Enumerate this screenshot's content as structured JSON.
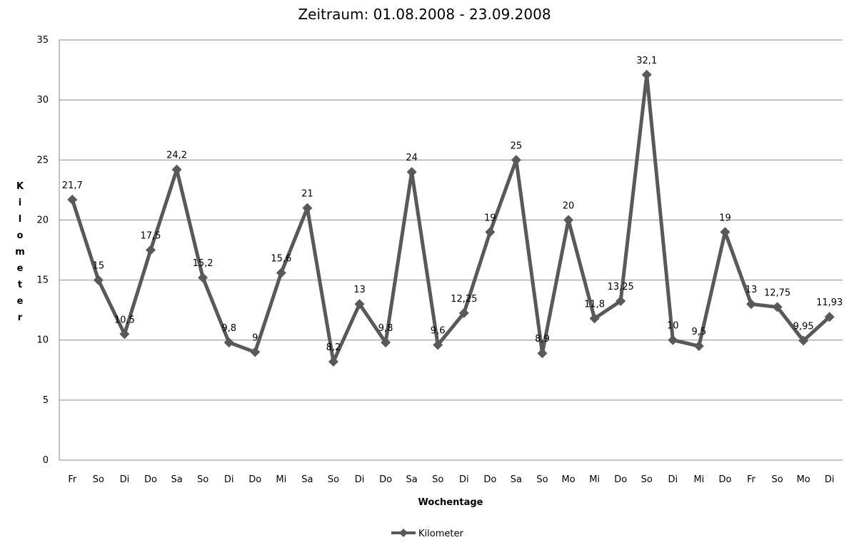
{
  "chart_data": {
    "type": "line",
    "title": "Zeitraum: 01.08.2008 - 23.09.2008",
    "xlabel": "Wochentage",
    "ylabel": "Kilometer",
    "ylim": [
      0,
      35
    ],
    "yticks": [
      "0",
      "5",
      "10",
      "15",
      "20",
      "25",
      "30",
      "35"
    ],
    "grid": true,
    "legend_position": "bottom",
    "categories": [
      "Fr",
      "So",
      "Di",
      "Do",
      "Sa",
      "So",
      "Di",
      "Do",
      "Mi",
      "Sa",
      "So",
      "Di",
      "Do",
      "Sa",
      "So",
      "Di",
      "Do",
      "Sa",
      "So",
      "Mo",
      "Mi",
      "Do",
      "So",
      "Di",
      "Mi",
      "Do",
      "Fr",
      "So",
      "Mo",
      "Di"
    ],
    "series": [
      {
        "name": "Kilometer",
        "color": "#595959",
        "marker": "diamond",
        "values": [
          21.7,
          15,
          10.5,
          17.5,
          24.2,
          15.2,
          9.8,
          9,
          15.6,
          21,
          8.2,
          13,
          9.8,
          24,
          9.6,
          12.25,
          19,
          25,
          8.9,
          20,
          11.8,
          13.25,
          32.1,
          10,
          9.5,
          19,
          13,
          12.75,
          9.95,
          11.93
        ],
        "labels": [
          "21,7",
          "15",
          "10,5",
          "17,5",
          "24,2",
          "15,2",
          "9,8",
          "9",
          "15,6",
          "21",
          "8,2",
          "13",
          "9,8",
          "24",
          "9,6",
          "12,25",
          "19",
          "25",
          "8,9",
          "20",
          "11,8",
          "13,25",
          "32,1",
          "10",
          "9,5",
          "19",
          "13",
          "12,75",
          "9,95",
          "11,93"
        ]
      }
    ]
  }
}
